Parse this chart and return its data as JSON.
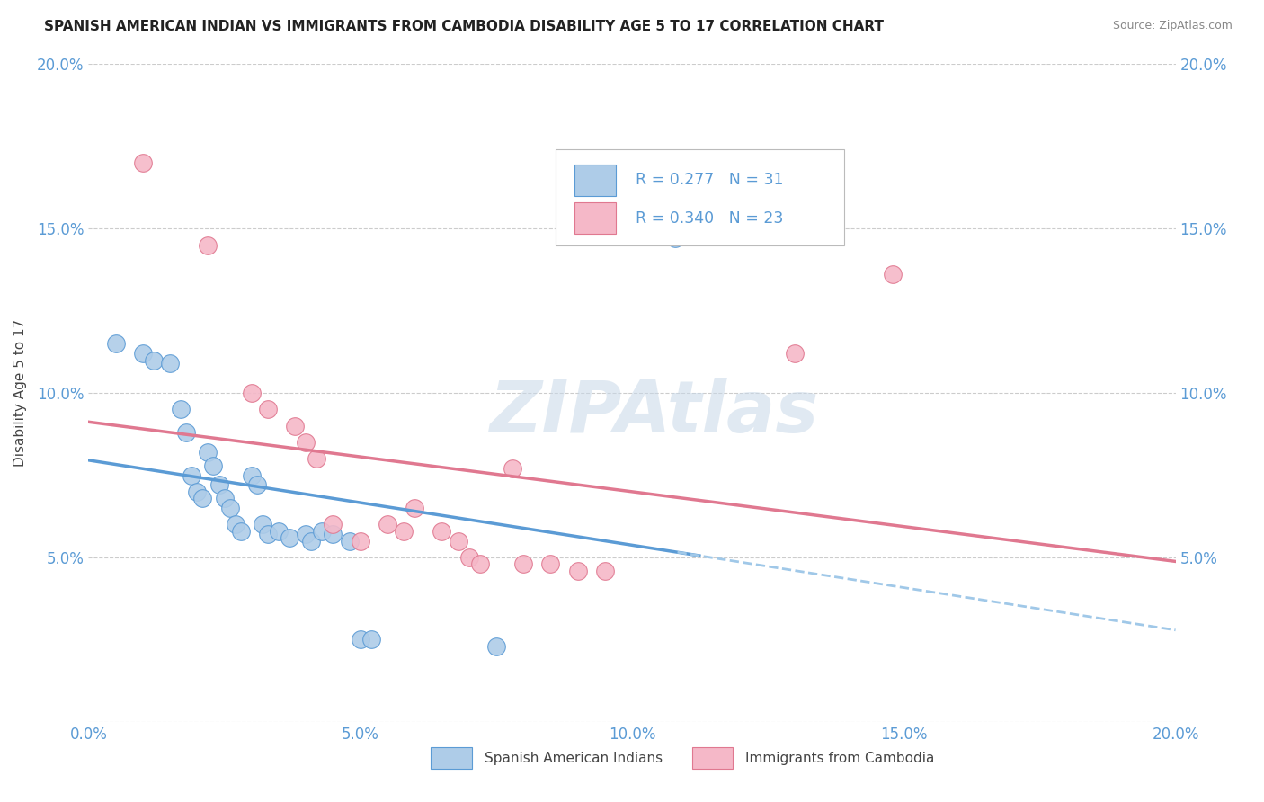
{
  "title": "SPANISH AMERICAN INDIAN VS IMMIGRANTS FROM CAMBODIA DISABILITY AGE 5 TO 17 CORRELATION CHART",
  "source": "Source: ZipAtlas.com",
  "ylabel": "Disability Age 5 to 17",
  "xlim": [
    0.0,
    0.2
  ],
  "ylim": [
    0.0,
    0.2
  ],
  "xtick_vals": [
    0.0,
    0.05,
    0.1,
    0.15,
    0.2
  ],
  "xtick_labels": [
    "0.0%",
    "5.0%",
    "10.0%",
    "15.0%",
    "20.0%"
  ],
  "ytick_vals": [
    0.0,
    0.05,
    0.1,
    0.15,
    0.2
  ],
  "ytick_labels_left": [
    "",
    "5.0%",
    "10.0%",
    "15.0%",
    "20.0%"
  ],
  "ytick_labels_right": [
    "5.0%",
    "10.0%",
    "15.0%",
    "20.0%"
  ],
  "watermark": "ZIPAtlas",
  "legend_r1": "0.277",
  "legend_n1": "31",
  "legend_r2": "0.340",
  "legend_n2": "23",
  "legend_label1": "Spanish American Indians",
  "legend_label2": "Immigrants from Cambodia",
  "color_blue": "#aecce8",
  "color_pink": "#f5b8c8",
  "line_color_blue": "#5b9bd5",
  "line_color_pink": "#e07890",
  "line_color_blue_dashed": "#a0c8e8",
  "grid_color": "#cccccc",
  "blue_scatter_x": [
    0.005,
    0.01,
    0.012,
    0.015,
    0.017,
    0.018,
    0.019,
    0.02,
    0.021,
    0.022,
    0.023,
    0.024,
    0.025,
    0.026,
    0.027,
    0.028,
    0.03,
    0.031,
    0.032,
    0.033,
    0.035,
    0.037,
    0.04,
    0.041,
    0.043,
    0.045,
    0.048,
    0.05,
    0.052,
    0.075,
    0.108
  ],
  "blue_scatter_y": [
    0.115,
    0.112,
    0.11,
    0.109,
    0.095,
    0.088,
    0.075,
    0.07,
    0.068,
    0.082,
    0.078,
    0.072,
    0.068,
    0.065,
    0.06,
    0.058,
    0.075,
    0.072,
    0.06,
    0.057,
    0.058,
    0.056,
    0.057,
    0.055,
    0.058,
    0.057,
    0.055,
    0.025,
    0.025,
    0.023,
    0.147
  ],
  "pink_scatter_x": [
    0.01,
    0.022,
    0.03,
    0.033,
    0.038,
    0.04,
    0.042,
    0.045,
    0.05,
    0.055,
    0.058,
    0.06,
    0.065,
    0.068,
    0.07,
    0.072,
    0.078,
    0.08,
    0.085,
    0.09,
    0.095,
    0.13,
    0.148
  ],
  "pink_scatter_y": [
    0.17,
    0.145,
    0.1,
    0.095,
    0.09,
    0.085,
    0.08,
    0.06,
    0.055,
    0.06,
    0.058,
    0.065,
    0.058,
    0.055,
    0.05,
    0.048,
    0.077,
    0.048,
    0.048,
    0.046,
    0.046,
    0.112,
    0.136
  ]
}
